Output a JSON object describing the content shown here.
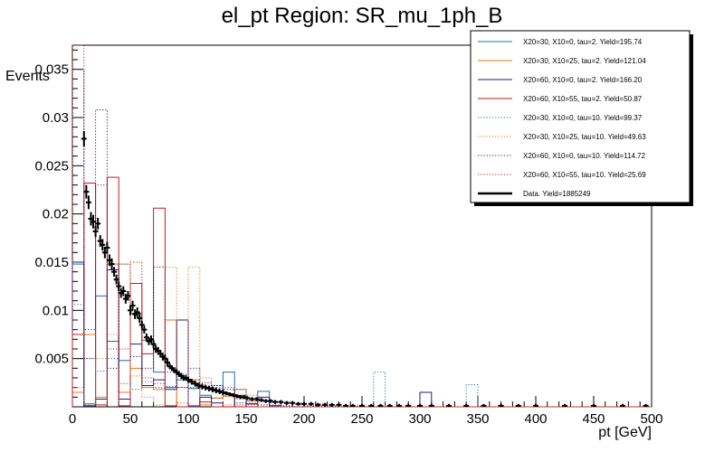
{
  "chart_data": {
    "type": "histogram",
    "title": "el_pt Region: SR_mu_1ph_B",
    "xlabel": "pt [GeV]",
    "ylabel": "Events",
    "xlim": [
      0,
      500
    ],
    "ylim": [
      0,
      0.0375
    ],
    "x_ticks": [
      0,
      50,
      100,
      150,
      200,
      250,
      300,
      350,
      400,
      450,
      500
    ],
    "y_ticks": [
      0.005,
      0.01,
      0.015,
      0.02,
      0.025,
      0.03,
      0.035
    ],
    "y_tick_labels": [
      "0.005",
      "0.01",
      "0.015",
      "0.02",
      "0.025",
      "0.03",
      "0.035"
    ],
    "bin_width": 10,
    "legend_position": "top-right",
    "series": [
      {
        "name": "X20=30, X10=0, tau=2. Yield=195.74",
        "color": "#1f6fb4",
        "style": "solid",
        "values": [
          0.0148,
          0.0003,
          0.0115,
          0.0068,
          0.0048,
          0.0097,
          0.0069,
          0.0036,
          0.002,
          0.0028,
          0.0019,
          0.0012,
          0.0009,
          0.0036,
          0,
          0,
          0.0016,
          0,
          0,
          0,
          0,
          0,
          0,
          0,
          0,
          0,
          0,
          0,
          0,
          0,
          0,
          0,
          0,
          0,
          0,
          0,
          0,
          0,
          0,
          0,
          0,
          0,
          0,
          0,
          0,
          0,
          0,
          0,
          0,
          0
        ]
      },
      {
        "name": "X20=30, X10=25, tau=2. Yield=121.04",
        "color": "#e8731a",
        "style": "solid",
        "values": [
          0.0015,
          0.0075,
          0.001,
          0.0148,
          0.0015,
          0.004,
          0.002,
          0.0018,
          0.009,
          0,
          0.0028,
          0.0002,
          0.0009,
          0.0011,
          0.0018,
          0.0006,
          0,
          0,
          0,
          0,
          0,
          0,
          0,
          0,
          0,
          0,
          0,
          0,
          0,
          0,
          0,
          0,
          0,
          0,
          0,
          0,
          0,
          0,
          0,
          0,
          0,
          0,
          0,
          0,
          0,
          0,
          0,
          0,
          0,
          0
        ]
      },
      {
        "name": "X20=60, X10=0, tau=2. Yield=166.20",
        "color": "#1a1a8c",
        "style": "solid",
        "values": [
          0.015,
          0.0001,
          0.0008,
          0.0142,
          0.0008,
          0.0065,
          0.0022,
          0.0028,
          0.0018,
          0.009,
          0,
          0.001,
          0.0004,
          0,
          0.0012,
          0.0003,
          0.001,
          0.0001,
          0,
          0,
          0,
          0,
          0,
          0,
          0,
          0,
          0,
          0,
          0,
          0,
          0.0015,
          0,
          0,
          0,
          0,
          0,
          0,
          0,
          0,
          0,
          0,
          0,
          0,
          0,
          0,
          0,
          0,
          0,
          0,
          0
        ]
      },
      {
        "name": "X20=60, X10=55, tau=2. Yield=50.87",
        "color": "#c41a1a",
        "style": "solid",
        "values": [
          0.0075,
          0.0232,
          0.0002,
          0.0238,
          0.0001,
          0.0128,
          0.0055,
          0.0206,
          0.0001,
          0,
          0.0001,
          0.0005,
          0,
          0,
          0,
          0,
          0,
          0,
          0,
          0,
          0,
          0,
          0,
          0,
          0,
          0,
          0,
          0,
          0,
          0,
          0,
          0,
          0,
          0,
          0,
          0,
          0,
          0,
          0,
          0,
          0,
          0,
          0,
          0,
          0,
          0,
          0,
          0,
          0,
          0
        ]
      },
      {
        "name": "X20=30, X10=0, tau=10. Yield=99.37",
        "color": "#1f6fb4",
        "style": "dotted",
        "values": [
          0.0106,
          0.005,
          0.0037,
          0.005,
          0.0024,
          0.0018,
          0.0026,
          0.0024,
          0.0021,
          0.0034,
          0.0019,
          0.002,
          0.0022,
          0.0012,
          0.0018,
          0.0004,
          0.0006,
          0.0002,
          0.0001,
          0,
          0.0001,
          0.0003,
          0.0001,
          0,
          0,
          0,
          0.0036,
          0,
          0,
          0,
          0,
          0,
          0,
          0,
          0.0023,
          0,
          0,
          0,
          0,
          0,
          0,
          0,
          0,
          0,
          0,
          0,
          0,
          0,
          0,
          0
        ]
      },
      {
        "name": "X20=30, X10=25, tau=10. Yield=49.63",
        "color": "#e8731a",
        "style": "dotted",
        "values": [
          0.002,
          0.0002,
          0.005,
          0.0075,
          0.0148,
          0.0032,
          0.001,
          0.0002,
          0.0145,
          0.0004,
          0.0145,
          0.003,
          0.0016,
          0.0002,
          0.0008,
          0.0012,
          0,
          0,
          0,
          0,
          0,
          0,
          0,
          0,
          0,
          0,
          0,
          0,
          0,
          0,
          0,
          0,
          0,
          0,
          0,
          0,
          0,
          0,
          0,
          0,
          0,
          0,
          0,
          0,
          0,
          0,
          0,
          0,
          0,
          0
        ]
      },
      {
        "name": "X20=60, X10=0, tau=10. Yield=114.72",
        "color": "#1a1a8c",
        "style": "dotted",
        "values": [
          0.035,
          0.008,
          0.0308,
          0.004,
          0.0148,
          0.0052,
          0.004,
          0.0145,
          0.0036,
          0.002,
          0.004,
          0.0025,
          0.0022,
          0.0018,
          0.0004,
          0.0003,
          0.0002,
          0.0001,
          0.0001,
          0,
          0.0001,
          0.0001,
          0,
          0,
          0.0001,
          0,
          0,
          0,
          0,
          0,
          0,
          0,
          0,
          0,
          0,
          0,
          0,
          0,
          0,
          0,
          0,
          0,
          0,
          0,
          0,
          0,
          0,
          0,
          0,
          0
        ]
      },
      {
        "name": "X20=60, X10=55, tau=10. Yield=25.69",
        "color": "#c41a1a",
        "style": "dotted",
        "values": [
          0.0375,
          0.005,
          0.023,
          0.006,
          0.006,
          0.015,
          0.003,
          0.002,
          0.002,
          0.002,
          0.002,
          0.002,
          0.002,
          0.002,
          0.0002,
          0.0002,
          0,
          0,
          0,
          0,
          0,
          0,
          0,
          0,
          0,
          0,
          0,
          0,
          0,
          0,
          0,
          0,
          0,
          0,
          0,
          0,
          0,
          0,
          0,
          0,
          0,
          0,
          0,
          0,
          0,
          0,
          0,
          0,
          0,
          0
        ]
      }
    ],
    "data": {
      "name": "Data. Yield=1885249",
      "color": "#000000",
      "x": [
        10,
        12,
        14,
        16,
        18,
        20,
        22,
        24,
        26,
        28,
        30,
        32,
        34,
        36,
        38,
        40,
        42,
        44,
        46,
        48,
        50,
        52,
        54,
        56,
        58,
        60,
        62,
        64,
        66,
        68,
        70,
        72,
        74,
        76,
        78,
        80,
        82,
        84,
        86,
        88,
        90,
        92,
        94,
        96,
        98,
        100,
        103,
        106,
        109,
        112,
        115,
        118,
        121,
        124,
        127,
        130,
        133,
        136,
        139,
        142,
        145,
        148,
        151,
        155,
        159,
        163,
        167,
        171,
        175,
        180,
        185,
        190,
        195,
        200,
        206,
        212,
        218,
        224,
        230,
        236,
        242,
        250,
        258,
        266,
        274,
        282,
        290,
        300,
        310,
        325,
        340,
        355,
        370,
        385,
        400,
        425,
        450,
        475,
        495
      ],
      "y": [
        0.0278,
        0.0223,
        0.0212,
        0.0195,
        0.0192,
        0.0182,
        0.019,
        0.0172,
        0.0168,
        0.016,
        0.0165,
        0.0152,
        0.0148,
        0.014,
        0.0132,
        0.0125,
        0.0118,
        0.012,
        0.0112,
        0.0115,
        0.01,
        0.0105,
        0.0096,
        0.0098,
        0.0092,
        0.0085,
        0.008,
        0.0072,
        0.0068,
        0.007,
        0.0065,
        0.006,
        0.0058,
        0.0055,
        0.0052,
        0.005,
        0.0046,
        0.0042,
        0.004,
        0.0038,
        0.0036,
        0.0034,
        0.0032,
        0.003,
        0.003,
        0.0028,
        0.0026,
        0.0024,
        0.0022,
        0.0021,
        0.002,
        0.0019,
        0.0018,
        0.0017,
        0.0016,
        0.0015,
        0.0014,
        0.0013,
        0.0012,
        0.0011,
        0.001,
        0.001,
        0.0009,
        0.0008,
        0.0008,
        0.0007,
        0.0006,
        0.0006,
        0.0005,
        0.0005,
        0.0004,
        0.0004,
        0.0003,
        0.0003,
        0.0003,
        0.0002,
        0.0002,
        0.0002,
        0.0002,
        0.0001,
        0.0001,
        0.0001,
        0.0001,
        0.0001,
        0.0001,
        0.0001,
        0.0001,
        0.0001,
        0.0001,
        0.0001,
        0.0001,
        0.0001,
        0.0001,
        0.0001,
        0.0001,
        0.0001,
        0.0001,
        0.0001,
        0.0001
      ],
      "yerr": [
        0.0008,
        0.0007,
        0.0007,
        0.0007,
        0.0007,
        0.0006,
        0.0006,
        0.0006,
        0.0006,
        0.0006,
        0.0006,
        0.0006,
        0.0006,
        0.0005,
        0.0005,
        0.0005,
        0.0005,
        0.0005,
        0.0005,
        0.0005,
        0.0005,
        0.0005,
        0.0005,
        0.0005,
        0.0005,
        0.0004,
        0.0004,
        0.0004,
        0.0004,
        0.0004,
        0.0004,
        0.0004,
        0.0004,
        0.0004,
        0.0004,
        0.0004,
        0.0004,
        0.0003,
        0.0003,
        0.0003,
        0.0003,
        0.0003,
        0.0003,
        0.0003,
        0.0003,
        0.0003,
        0.0003,
        0.0003,
        0.0003,
        0.0003,
        0.0003,
        0.0003,
        0.0003,
        0.0003,
        0.0003,
        0.0003,
        0.0002,
        0.0002,
        0.0002,
        0.0002,
        0.0002,
        0.0002,
        0.0002,
        0.0002,
        0.0002,
        0.0002,
        0.0002,
        0.0002,
        0.0002,
        0.0002,
        0.0002,
        0.0002,
        0.0002,
        0.0002,
        0.0002,
        0.0002,
        0.0002,
        0.0002,
        0.0002,
        0.0002,
        0.0002,
        0.0002,
        0.0002,
        0.0002,
        0.0002,
        0.0002,
        0.0002,
        0.0002,
        0.0002,
        0.0002,
        0.0002,
        0.0002,
        0.0002,
        0.0002,
        0.0002,
        0.0002,
        0.0002,
        0.0002,
        0.0002
      ]
    }
  }
}
